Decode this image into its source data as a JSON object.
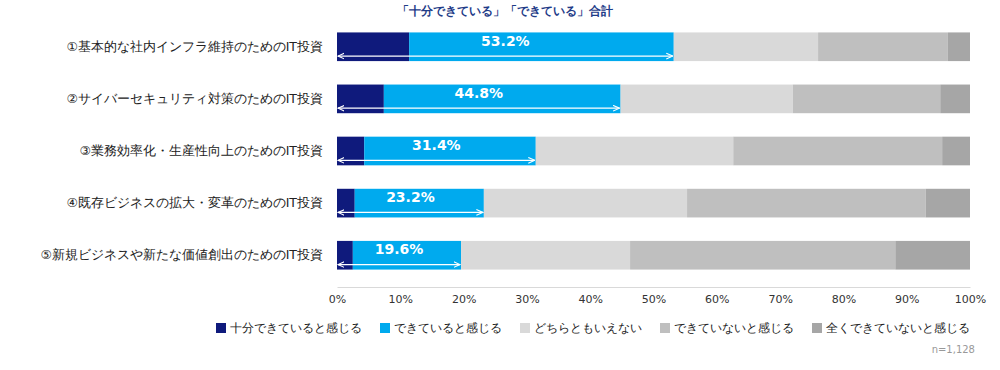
{
  "chart_data": {
    "type": "bar",
    "orientation": "horizontal",
    "stacked": true,
    "legend": "bottom",
    "grid": false,
    "categories": [
      "①基本的な社内インフラ維持のためのIT投資",
      "②サイバーセキュリティ対策のためのIT投資",
      "③業務効率化・生産性向上のためのIT投資",
      "④既存ビジネスの拡大・変革のためのIT投資",
      "⑤新規ビジネスや新たな価値創出のためのIT投資"
    ],
    "series": [
      {
        "name": "十分できていると感じる",
        "color": "#0f1a7c",
        "values": [
          11.4,
          7.4,
          4.3,
          2.8,
          2.5
        ]
      },
      {
        "name": "できていると感じる",
        "color": "#00aaee",
        "values": [
          41.8,
          37.4,
          27.1,
          20.4,
          17.1
        ]
      },
      {
        "name": "どちらともいえない",
        "color": "#d9d9d9",
        "values": [
          22.8,
          27.2,
          31.2,
          32.1,
          26.7
        ]
      },
      {
        "name": "できていないと感じる",
        "color": "#bfbfbf",
        "values": [
          20.5,
          23.3,
          33.0,
          37.7,
          41.9
        ]
      },
      {
        "name": "全くできていないと感じる",
        "color": "#a6a6a6",
        "values": [
          3.5,
          4.7,
          4.4,
          7.0,
          11.8
        ]
      }
    ],
    "xlim": [
      0,
      100
    ],
    "xticks": [
      {
        "value": 0,
        "label": "0%"
      },
      {
        "value": 10,
        "label": "10%"
      },
      {
        "value": 20,
        "label": "20%"
      },
      {
        "value": 30,
        "label": "30%"
      },
      {
        "value": 40,
        "label": "40%"
      },
      {
        "value": 50,
        "label": "50%"
      },
      {
        "value": 60,
        "label": "60%"
      },
      {
        "value": 70,
        "label": "70%"
      },
      {
        "value": 80,
        "label": "80%"
      },
      {
        "value": 90,
        "label": "90%"
      },
      {
        "value": 100,
        "label": "100%"
      }
    ],
    "annotations": {
      "title": "「十分できている」「できている」合計",
      "values": [
        53.2,
        44.8,
        31.4,
        23.2,
        19.6
      ],
      "value_labels": [
        "53.2%",
        "44.8%",
        "31.4%",
        "23.2%",
        "19.6%"
      ]
    },
    "note": "n=1,128"
  }
}
